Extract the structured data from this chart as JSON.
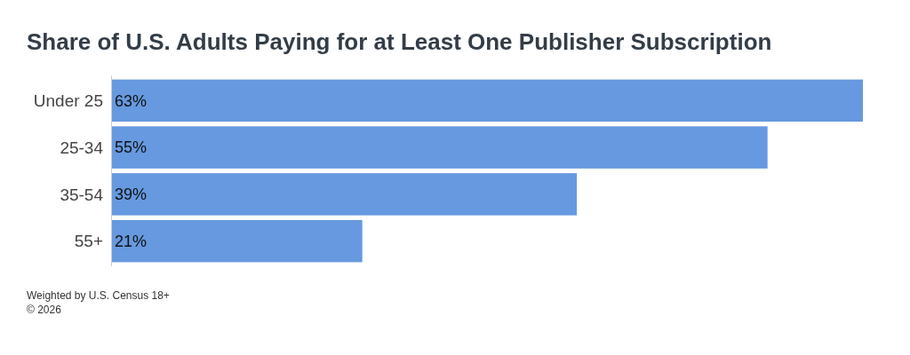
{
  "chart_data": {
    "type": "bar",
    "orientation": "horizontal",
    "title": "Share of U.S. Adults Paying for at Least One Publisher Subscription",
    "categories": [
      "Under 25",
      "25-34",
      "35-54",
      "55+"
    ],
    "values": [
      63,
      55,
      39,
      21
    ],
    "value_labels": [
      "63%",
      "55%",
      "39%",
      "21%"
    ],
    "color": "#6699e0",
    "annotations": [
      "Weighted by U.S. Census 18+",
      "© 2026"
    ]
  }
}
